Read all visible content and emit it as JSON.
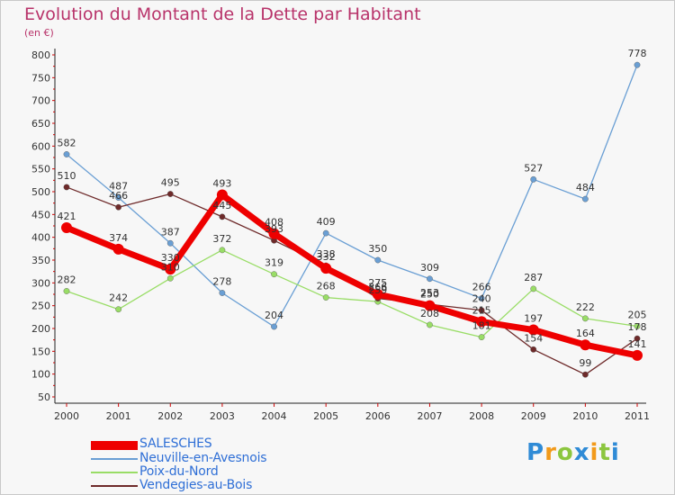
{
  "title": "Evolution du Montant de la Dette par Habitant",
  "subtitle": "(en €)",
  "brand": {
    "text": "Proxiti",
    "letters": [
      {
        "ch": "P",
        "color": "#2f8bd6"
      },
      {
        "ch": "r",
        "color": "#f29a1a"
      },
      {
        "ch": "o",
        "color": "#8cc63f"
      },
      {
        "ch": "x",
        "color": "#2f8bd6"
      },
      {
        "ch": "i",
        "color": "#f29a1a"
      },
      {
        "ch": "t",
        "color": "#8cc63f"
      },
      {
        "ch": "i",
        "color": "#2f8bd6"
      }
    ]
  },
  "chart_data": {
    "type": "line",
    "categories": [
      "2000",
      "2001",
      "2002",
      "2003",
      "2004",
      "2005",
      "2006",
      "2007",
      "2008",
      "2009",
      "2010",
      "2011"
    ],
    "ylim": [
      50,
      800
    ],
    "yticks": [
      50,
      100,
      150,
      200,
      250,
      300,
      350,
      400,
      450,
      500,
      550,
      600,
      650,
      700,
      750,
      800
    ],
    "grid": false,
    "legend_position": "bottom-left",
    "series": [
      {
        "name": "SALESCHES",
        "color": "#ee0000",
        "values": [
          421,
          374,
          330,
          493,
          408,
          332,
          275,
          250,
          215,
          197,
          164,
          141
        ],
        "labels": [
          "421",
          "374",
          "330",
          "493",
          "408",
          "332",
          "275",
          "250",
          "215",
          "197",
          "164",
          "141"
        ]
      },
      {
        "name": "Neuville-en-Avesnois",
        "color": "#6a9fd4",
        "values": [
          582,
          487,
          387,
          278,
          204,
          409,
          350,
          309,
          266,
          527,
          484,
          778
        ],
        "labels": [
          "582",
          "487",
          "387",
          "278",
          "204",
          "409",
          "350",
          "309",
          "266",
          "527",
          "484",
          "778"
        ]
      },
      {
        "name": "Poix-du-Nord",
        "color": "#99dd66",
        "values": [
          282,
          242,
          310,
          372,
          319,
          268,
          259,
          208,
          181,
          287,
          222,
          205
        ],
        "labels": [
          "282",
          "242",
          "310",
          "372",
          "319",
          "268",
          "259",
          "208",
          "181",
          "287",
          "222",
          "205"
        ]
      },
      {
        "name": "Vendegies-au-Bois",
        "color": "#6e2a2a",
        "values": [
          510,
          466,
          495,
          445,
          393,
          338,
          266,
          253,
          240,
          154,
          99,
          178
        ],
        "labels": [
          "510",
          "466",
          "495",
          "445",
          "393",
          "338",
          "266",
          "253",
          "240",
          "154",
          "99",
          "178"
        ]
      }
    ]
  }
}
